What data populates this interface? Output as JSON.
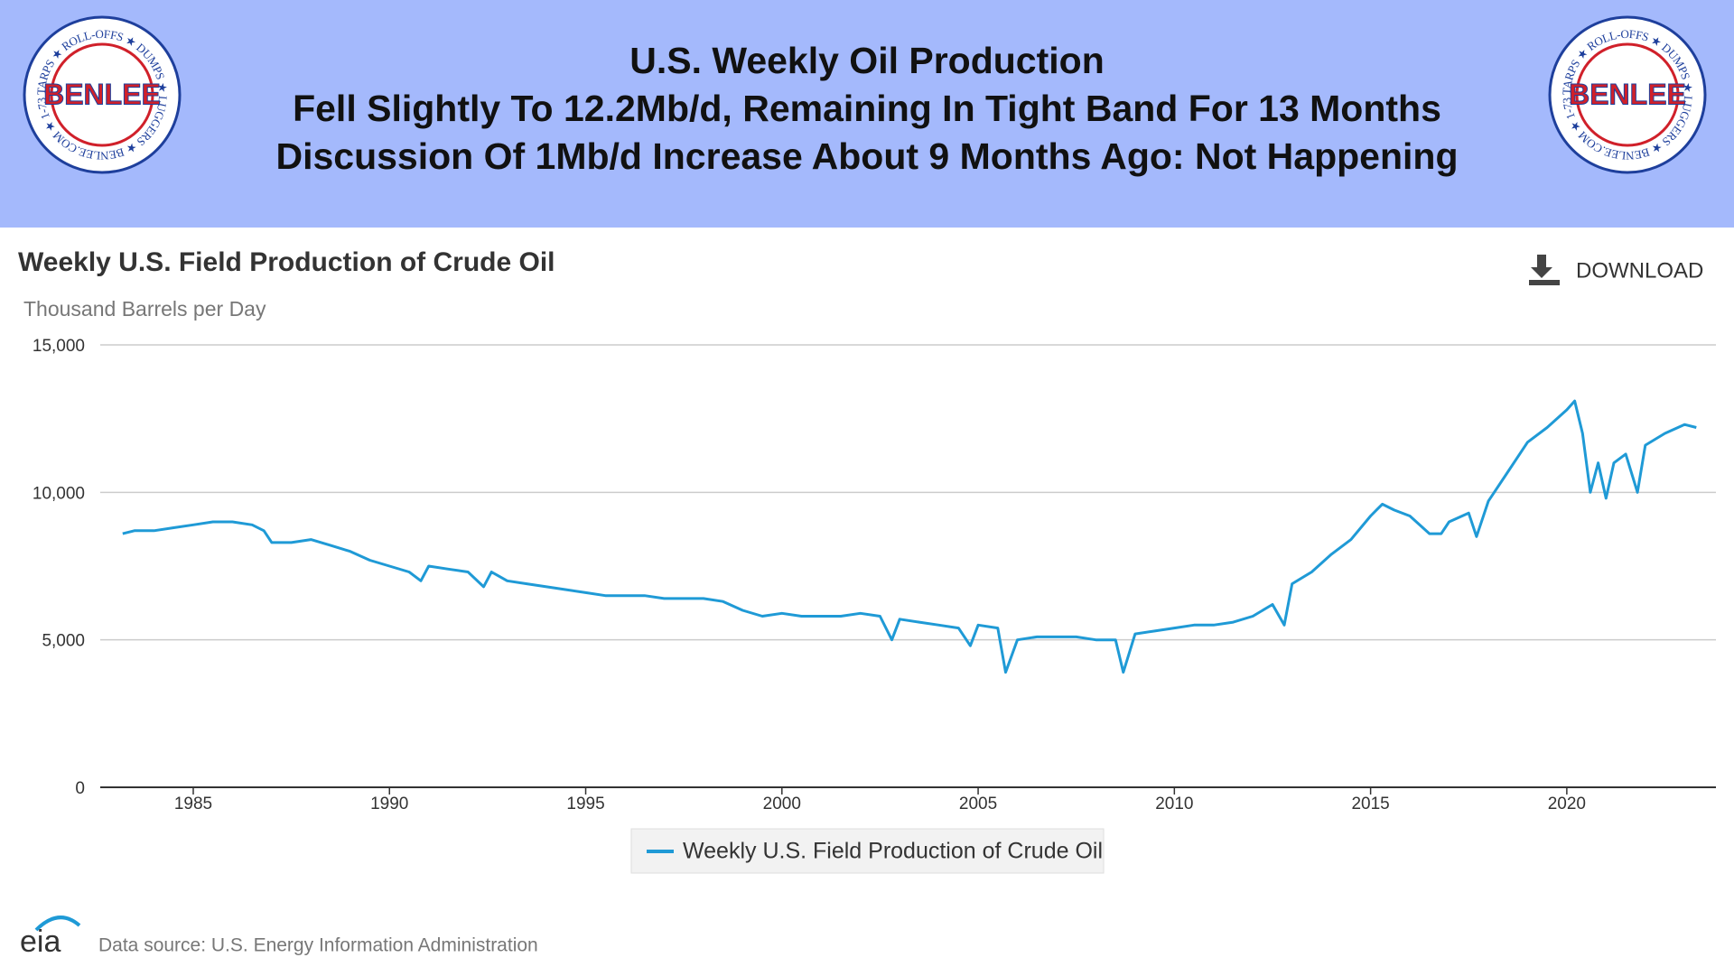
{
  "header": {
    "lines": [
      "U.S. Weekly Oil Production",
      "Fell Slightly To 12.2Mb/d, Remaining In Tight Band For 13 Months",
      "Discussion Of 1Mb/d Increase About 9 Months Ago: Not Happening"
    ]
  },
  "logo": {
    "name": "BENLEE",
    "ring": "TARPS ★ ROLL-OFFS ★ DUMPS ★ LUGGERS ★ BENLEE.COM ★ 1-734-722-8100 ★ PARTS ★"
  },
  "download": "DOWNLOAD",
  "footer": {
    "brand": "eia",
    "source": "Data source: U.S. Energy Information Administration"
  },
  "chart_data": {
    "type": "line",
    "title": "Weekly U.S. Field Production of Crude Oil",
    "y_label": "Thousand Barrels per Day",
    "x": [
      1983.2,
      1983.5,
      1984,
      1984.5,
      1985,
      1985.5,
      1986,
      1986.5,
      1986.8,
      1987,
      1987.5,
      1988,
      1988.5,
      1989,
      1989.5,
      1990,
      1990.5,
      1990.8,
      1991,
      1991.5,
      1992,
      1992.4,
      1992.6,
      1993,
      1993.5,
      1994,
      1994.5,
      1995,
      1995.5,
      1996,
      1996.5,
      1997,
      1997.5,
      1998,
      1998.5,
      1999,
      1999.5,
      2000,
      2000.5,
      2001,
      2001.5,
      2002,
      2002.5,
      2002.8,
      2003,
      2003.5,
      2004,
      2004.5,
      2004.8,
      2005,
      2005.5,
      2005.7,
      2006,
      2006.5,
      2007,
      2007.5,
      2008,
      2008.5,
      2008.7,
      2009,
      2009.5,
      2010,
      2010.5,
      2011,
      2011.5,
      2012,
      2012.5,
      2012.8,
      2013,
      2013.5,
      2014,
      2014.5,
      2015,
      2015.3,
      2015.6,
      2016,
      2016.5,
      2016.8,
      2017,
      2017.5,
      2017.7,
      2018,
      2018.5,
      2019,
      2019.5,
      2020,
      2020.2,
      2020.4,
      2020.6,
      2020.8,
      2021,
      2021.2,
      2021.5,
      2021.8,
      2022,
      2022.5,
      2023,
      2023.3
    ],
    "series": [
      {
        "name": "Weekly U.S. Field Production of Crude Oil",
        "color": "#1f9ad6",
        "values": [
          8600,
          8700,
          8700,
          8800,
          8900,
          9000,
          9000,
          8900,
          8700,
          8300,
          8300,
          8400,
          8200,
          8000,
          7700,
          7500,
          7300,
          7000,
          7500,
          7400,
          7300,
          6800,
          7300,
          7000,
          6900,
          6800,
          6700,
          6600,
          6500,
          6500,
          6500,
          6400,
          6400,
          6400,
          6300,
          6000,
          5800,
          5900,
          5800,
          5800,
          5800,
          5900,
          5800,
          5000,
          5700,
          5600,
          5500,
          5400,
          4800,
          5500,
          5400,
          3900,
          5000,
          5100,
          5100,
          5100,
          5000,
          5000,
          3900,
          5200,
          5300,
          5400,
          5500,
          5500,
          5600,
          5800,
          6200,
          5500,
          6900,
          7300,
          7900,
          8400,
          9200,
          9600,
          9400,
          9200,
          8600,
          8600,
          9000,
          9300,
          8500,
          9700,
          10700,
          11700,
          12200,
          12800,
          13100,
          12000,
          10000,
          11000,
          9800,
          11000,
          11300,
          10000,
          11600,
          12000,
          12300,
          12200
        ]
      }
    ],
    "xlim": [
      1982.63,
      2023.8
    ],
    "xticks": [
      1985,
      1990,
      1995,
      2000,
      2005,
      2010,
      2015,
      2020
    ],
    "ylim": [
      0,
      15000
    ],
    "yticks": [
      0,
      {
        "value": 5000,
        "label": "5,000"
      },
      {
        "value": 10000,
        "label": "10,000"
      },
      {
        "value": 15000,
        "label": "15,000"
      }
    ],
    "grid": true
  }
}
